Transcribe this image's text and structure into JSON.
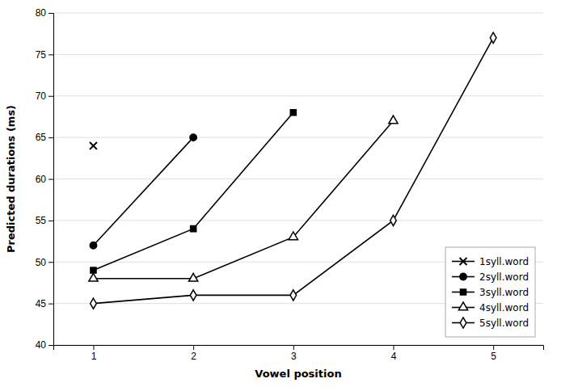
{
  "chart_data": {
    "type": "line",
    "x_label": "Vowel position",
    "y_label": "Predicted durations (ms)",
    "xlim": [
      0.6,
      5.5
    ],
    "ylim": [
      40,
      80
    ],
    "xticks": [
      1,
      2,
      3,
      4,
      5
    ],
    "yticks": [
      40,
      45,
      50,
      55,
      60,
      65,
      70,
      75,
      80
    ],
    "grid": "y",
    "legend": "lower right",
    "series": [
      {
        "name": "1syll.word",
        "color": "#000000",
        "marker": "x",
        "x": [
          1
        ],
        "values": [
          64
        ]
      },
      {
        "name": "2syll.word",
        "color": "#000000",
        "marker": "circle",
        "x": [
          1,
          2
        ],
        "values": [
          52,
          65
        ]
      },
      {
        "name": "3syll.word",
        "color": "#000000",
        "marker": "square",
        "x": [
          1,
          2,
          3
        ],
        "values": [
          49,
          54,
          68
        ]
      },
      {
        "name": "4syll.word",
        "color": "#000000",
        "marker": "triangle-open",
        "x": [
          1,
          2,
          3,
          4
        ],
        "values": [
          48,
          48,
          53,
          67
        ]
      },
      {
        "name": "5syll.word",
        "color": "#000000",
        "marker": "diamond-open",
        "x": [
          1,
          2,
          3,
          4,
          5
        ],
        "values": [
          45,
          46,
          46,
          55,
          77
        ]
      }
    ]
  }
}
